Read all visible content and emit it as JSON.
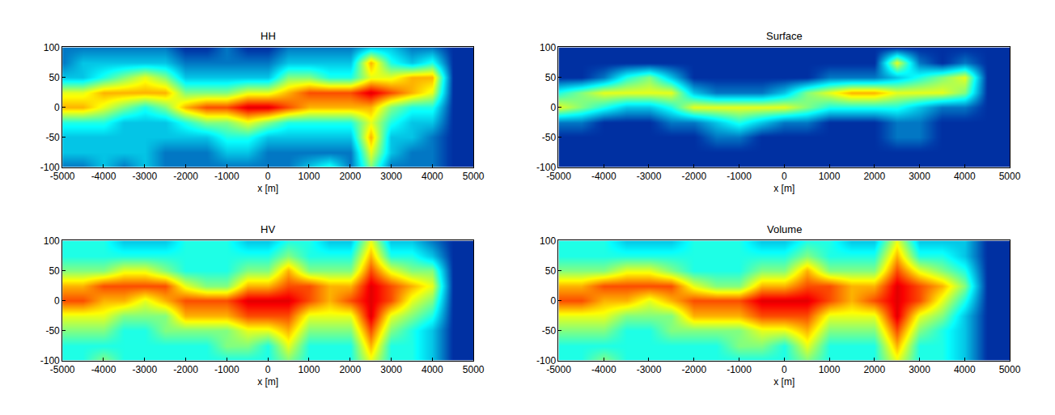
{
  "chart_data": [
    {
      "type": "heatmap",
      "title": "HH",
      "xlabel": "x [m]",
      "color": "Jet",
      "xlim": [
        -5000,
        5000
      ],
      "ylim": [
        -100,
        100
      ],
      "xticks": [
        -5000,
        -4000,
        -3000,
        -2000,
        -1000,
        0,
        1000,
        2000,
        3000,
        4000,
        5000
      ],
      "yticks": [
        -100,
        -50,
        0,
        50,
        100
      ],
      "zlim": [
        0,
        10
      ],
      "x": [
        -5000,
        -4500,
        -4000,
        -3500,
        -3000,
        -2500,
        -2000,
        -1500,
        -1000,
        -500,
        0,
        500,
        1000,
        1500,
        2000,
        2500,
        3000,
        3500,
        4000,
        4500,
        5000
      ],
      "y": [
        -100,
        -75,
        -50,
        -25,
        0,
        25,
        50,
        75,
        100
      ],
      "cells": [
        [
          2,
          3,
          3,
          4,
          7,
          6,
          3,
          2,
          2
        ],
        [
          2,
          3,
          3,
          4,
          7,
          6,
          3,
          3,
          2
        ],
        [
          3,
          3,
          3,
          4,
          6,
          7,
          4,
          3,
          2
        ],
        [
          2,
          3,
          3,
          3,
          5,
          7,
          5,
          3,
          2
        ],
        [
          3,
          3,
          3,
          3,
          4,
          7,
          6,
          3,
          2
        ],
        [
          2,
          2,
          3,
          3,
          5,
          7,
          5,
          3,
          2
        ],
        [
          2,
          2,
          3,
          4,
          7,
          5,
          3,
          2,
          1
        ],
        [
          2,
          2,
          3,
          5,
          8,
          5,
          3,
          2,
          1
        ],
        [
          2,
          3,
          4,
          5,
          8,
          5,
          3,
          2,
          2
        ],
        [
          2,
          3,
          4,
          6,
          9,
          6,
          3,
          2,
          1
        ],
        [
          2,
          2,
          3,
          5,
          9,
          6,
          3,
          2,
          1
        ],
        [
          2,
          2,
          3,
          4,
          8,
          7,
          5,
          3,
          2
        ],
        [
          3,
          2,
          3,
          4,
          7,
          8,
          5,
          3,
          2
        ],
        [
          4,
          2,
          3,
          4,
          7,
          8,
          4,
          3,
          2
        ],
        [
          2,
          2,
          3,
          4,
          7,
          8,
          4,
          3,
          2
        ],
        [
          5,
          6,
          7,
          6,
          7,
          9,
          6,
          7,
          3
        ],
        [
          2,
          3,
          3,
          4,
          5,
          8,
          6,
          4,
          3
        ],
        [
          2,
          2,
          3,
          3,
          4,
          7,
          7,
          3,
          2
        ],
        [
          2,
          2,
          2,
          3,
          4,
          6,
          7,
          4,
          2
        ],
        [
          1,
          1,
          1,
          1,
          1,
          1,
          1,
          1,
          1
        ],
        [
          1,
          1,
          1,
          1,
          1,
          1,
          1,
          1,
          1
        ]
      ]
    },
    {
      "type": "heatmap",
      "title": "Surface",
      "xlabel": "x [m]",
      "color": "Jet",
      "xlim": [
        -5000,
        5000
      ],
      "ylim": [
        -100,
        100
      ],
      "xticks": [
        -5000,
        -4000,
        -3000,
        -2000,
        -1000,
        0,
        1000,
        2000,
        3000,
        4000,
        5000
      ],
      "yticks": [
        -100,
        -50,
        0,
        50,
        100
      ],
      "zlim": [
        0,
        10
      ],
      "x": [
        -5000,
        -4500,
        -4000,
        -3500,
        -3000,
        -2500,
        -2000,
        -1500,
        -1000,
        -500,
        0,
        500,
        1000,
        1500,
        2000,
        2500,
        3000,
        3500,
        4000,
        4500,
        5000
      ],
      "y": [
        -100,
        -75,
        -50,
        -25,
        0,
        25,
        50,
        75,
        100
      ],
      "cells": [
        [
          1,
          1,
          1,
          2,
          6,
          4,
          1,
          1,
          1
        ],
        [
          1,
          1,
          1,
          2,
          5,
          5,
          1,
          1,
          1
        ],
        [
          1,
          1,
          1,
          1,
          4,
          6,
          2,
          1,
          1
        ],
        [
          1,
          1,
          1,
          1,
          3,
          6,
          4,
          1,
          1
        ],
        [
          1,
          1,
          1,
          1,
          3,
          6,
          5,
          1,
          1
        ],
        [
          1,
          1,
          1,
          2,
          4,
          6,
          3,
          1,
          1
        ],
        [
          1,
          1,
          1,
          2,
          6,
          3,
          1,
          1,
          1
        ],
        [
          1,
          1,
          2,
          3,
          6,
          2,
          1,
          1,
          1
        ],
        [
          1,
          1,
          2,
          4,
          6,
          2,
          1,
          1,
          1
        ],
        [
          1,
          1,
          1,
          3,
          6,
          2,
          1,
          1,
          1
        ],
        [
          1,
          1,
          1,
          2,
          6,
          3,
          1,
          1,
          1
        ],
        [
          1,
          1,
          1,
          2,
          5,
          5,
          1,
          1,
          1
        ],
        [
          1,
          1,
          1,
          1,
          4,
          6,
          2,
          1,
          1
        ],
        [
          1,
          1,
          1,
          1,
          4,
          7,
          2,
          1,
          1
        ],
        [
          1,
          1,
          1,
          1,
          4,
          7,
          2,
          1,
          1
        ],
        [
          1,
          1,
          2,
          2,
          4,
          6,
          3,
          6,
          1
        ],
        [
          1,
          1,
          2,
          2,
          3,
          6,
          4,
          2,
          1
        ],
        [
          1,
          1,
          1,
          1,
          2,
          6,
          5,
          1,
          1
        ],
        [
          1,
          1,
          1,
          1,
          2,
          5,
          6,
          2,
          1
        ],
        [
          1,
          1,
          1,
          1,
          1,
          1,
          1,
          1,
          1
        ],
        [
          1,
          1,
          1,
          1,
          1,
          1,
          1,
          1,
          1
        ]
      ]
    },
    {
      "type": "heatmap",
      "title": "HV",
      "xlabel": "x [m]",
      "color": "Jet",
      "xlim": [
        -5000,
        5000
      ],
      "ylim": [
        -100,
        100
      ],
      "xticks": [
        -5000,
        -4000,
        -3000,
        -2000,
        -1000,
        0,
        1000,
        2000,
        3000,
        4000,
        5000
      ],
      "yticks": [
        -100,
        -50,
        0,
        50,
        100
      ],
      "zlim": [
        0,
        10
      ],
      "x": [
        -5000,
        -4500,
        -4000,
        -3500,
        -3000,
        -2500,
        -2000,
        -1500,
        -1000,
        -500,
        0,
        500,
        1000,
        1500,
        2000,
        2500,
        3000,
        3500,
        4000,
        4500,
        5000
      ],
      "y": [
        -100,
        -75,
        -50,
        -25,
        0,
        25,
        50,
        75,
        100
      ],
      "cells": [
        [
          4,
          4,
          5,
          6,
          8,
          7,
          5,
          4,
          4
        ],
        [
          4,
          4,
          5,
          6,
          8,
          7,
          5,
          4,
          4
        ],
        [
          5,
          4,
          5,
          6,
          7,
          8,
          5,
          4,
          4
        ],
        [
          4,
          4,
          4,
          5,
          7,
          8,
          6,
          4,
          3
        ],
        [
          4,
          4,
          4,
          5,
          6,
          8,
          6,
          4,
          3
        ],
        [
          4,
          4,
          5,
          5,
          7,
          8,
          5,
          4,
          3
        ],
        [
          4,
          4,
          5,
          7,
          8,
          6,
          4,
          4,
          4
        ],
        [
          4,
          4,
          5,
          7,
          8,
          5,
          4,
          4,
          4
        ],
        [
          4,
          5,
          5,
          7,
          8,
          5,
          4,
          4,
          4
        ],
        [
          4,
          5,
          6,
          8,
          9,
          7,
          5,
          4,
          3
        ],
        [
          4,
          4,
          6,
          8,
          9,
          7,
          5,
          4,
          3
        ],
        [
          5,
          6,
          7,
          8,
          9,
          8,
          7,
          5,
          4
        ],
        [
          4,
          4,
          5,
          6,
          8,
          8,
          5,
          4,
          4
        ],
        [
          4,
          4,
          5,
          6,
          7,
          7,
          5,
          4,
          3
        ],
        [
          4,
          4,
          5,
          6,
          8,
          7,
          5,
          4,
          3
        ],
        [
          6,
          7,
          8,
          9,
          9,
          9,
          8,
          7,
          6
        ],
        [
          4,
          4,
          5,
          6,
          8,
          8,
          6,
          4,
          3
        ],
        [
          4,
          4,
          4,
          5,
          6,
          7,
          5,
          4,
          3
        ],
        [
          3,
          3,
          3,
          4,
          5,
          6,
          5,
          3,
          2
        ],
        [
          1,
          1,
          1,
          1,
          1,
          1,
          1,
          1,
          1
        ],
        [
          1,
          1,
          1,
          1,
          1,
          1,
          1,
          1,
          1
        ]
      ]
    },
    {
      "type": "heatmap",
      "title": "Volume",
      "xlabel": "x [m]",
      "color": "Jet",
      "xlim": [
        -5000,
        5000
      ],
      "ylim": [
        -100,
        100
      ],
      "xticks": [
        -5000,
        -4000,
        -3000,
        -2000,
        -1000,
        0,
        1000,
        2000,
        3000,
        4000,
        5000
      ],
      "yticks": [
        -100,
        -50,
        0,
        50,
        100
      ],
      "zlim": [
        0,
        10
      ],
      "x": [
        -5000,
        -4500,
        -4000,
        -3500,
        -3000,
        -2500,
        -2000,
        -1500,
        -1000,
        -500,
        0,
        500,
        1000,
        1500,
        2000,
        2500,
        3000,
        3500,
        4000,
        4500,
        5000
      ],
      "y": [
        -100,
        -75,
        -50,
        -25,
        0,
        25,
        50,
        75,
        100
      ],
      "cells": [
        [
          4,
          4,
          5,
          6,
          8,
          7,
          5,
          4,
          4
        ],
        [
          4,
          4,
          5,
          6,
          8,
          7,
          5,
          4,
          4
        ],
        [
          5,
          4,
          5,
          6,
          7,
          8,
          5,
          4,
          4
        ],
        [
          4,
          4,
          4,
          5,
          7,
          8,
          6,
          4,
          3
        ],
        [
          4,
          4,
          4,
          5,
          6,
          8,
          6,
          4,
          3
        ],
        [
          4,
          4,
          5,
          5,
          7,
          8,
          5,
          4,
          3
        ],
        [
          4,
          4,
          5,
          7,
          8,
          6,
          4,
          4,
          4
        ],
        [
          4,
          4,
          5,
          7,
          8,
          5,
          4,
          4,
          4
        ],
        [
          4,
          5,
          5,
          7,
          8,
          5,
          4,
          4,
          4
        ],
        [
          4,
          5,
          6,
          8,
          9,
          7,
          5,
          4,
          3
        ],
        [
          4,
          4,
          6,
          8,
          9,
          7,
          5,
          4,
          3
        ],
        [
          5,
          6,
          7,
          8,
          9,
          8,
          7,
          5,
          4
        ],
        [
          4,
          4,
          5,
          6,
          8,
          8,
          5,
          4,
          4
        ],
        [
          4,
          4,
          5,
          6,
          7,
          7,
          5,
          4,
          3
        ],
        [
          4,
          4,
          5,
          6,
          8,
          7,
          5,
          4,
          3
        ],
        [
          6,
          7,
          8,
          9,
          9,
          9,
          8,
          7,
          6
        ],
        [
          4,
          4,
          5,
          6,
          8,
          8,
          6,
          4,
          3
        ],
        [
          4,
          4,
          4,
          5,
          6,
          7,
          5,
          4,
          3
        ],
        [
          3,
          3,
          3,
          3,
          4,
          5,
          4,
          3,
          3
        ],
        [
          1,
          1,
          1,
          1,
          1,
          1,
          1,
          1,
          1
        ],
        [
          1,
          1,
          1,
          1,
          1,
          1,
          1,
          1,
          1
        ]
      ]
    }
  ]
}
